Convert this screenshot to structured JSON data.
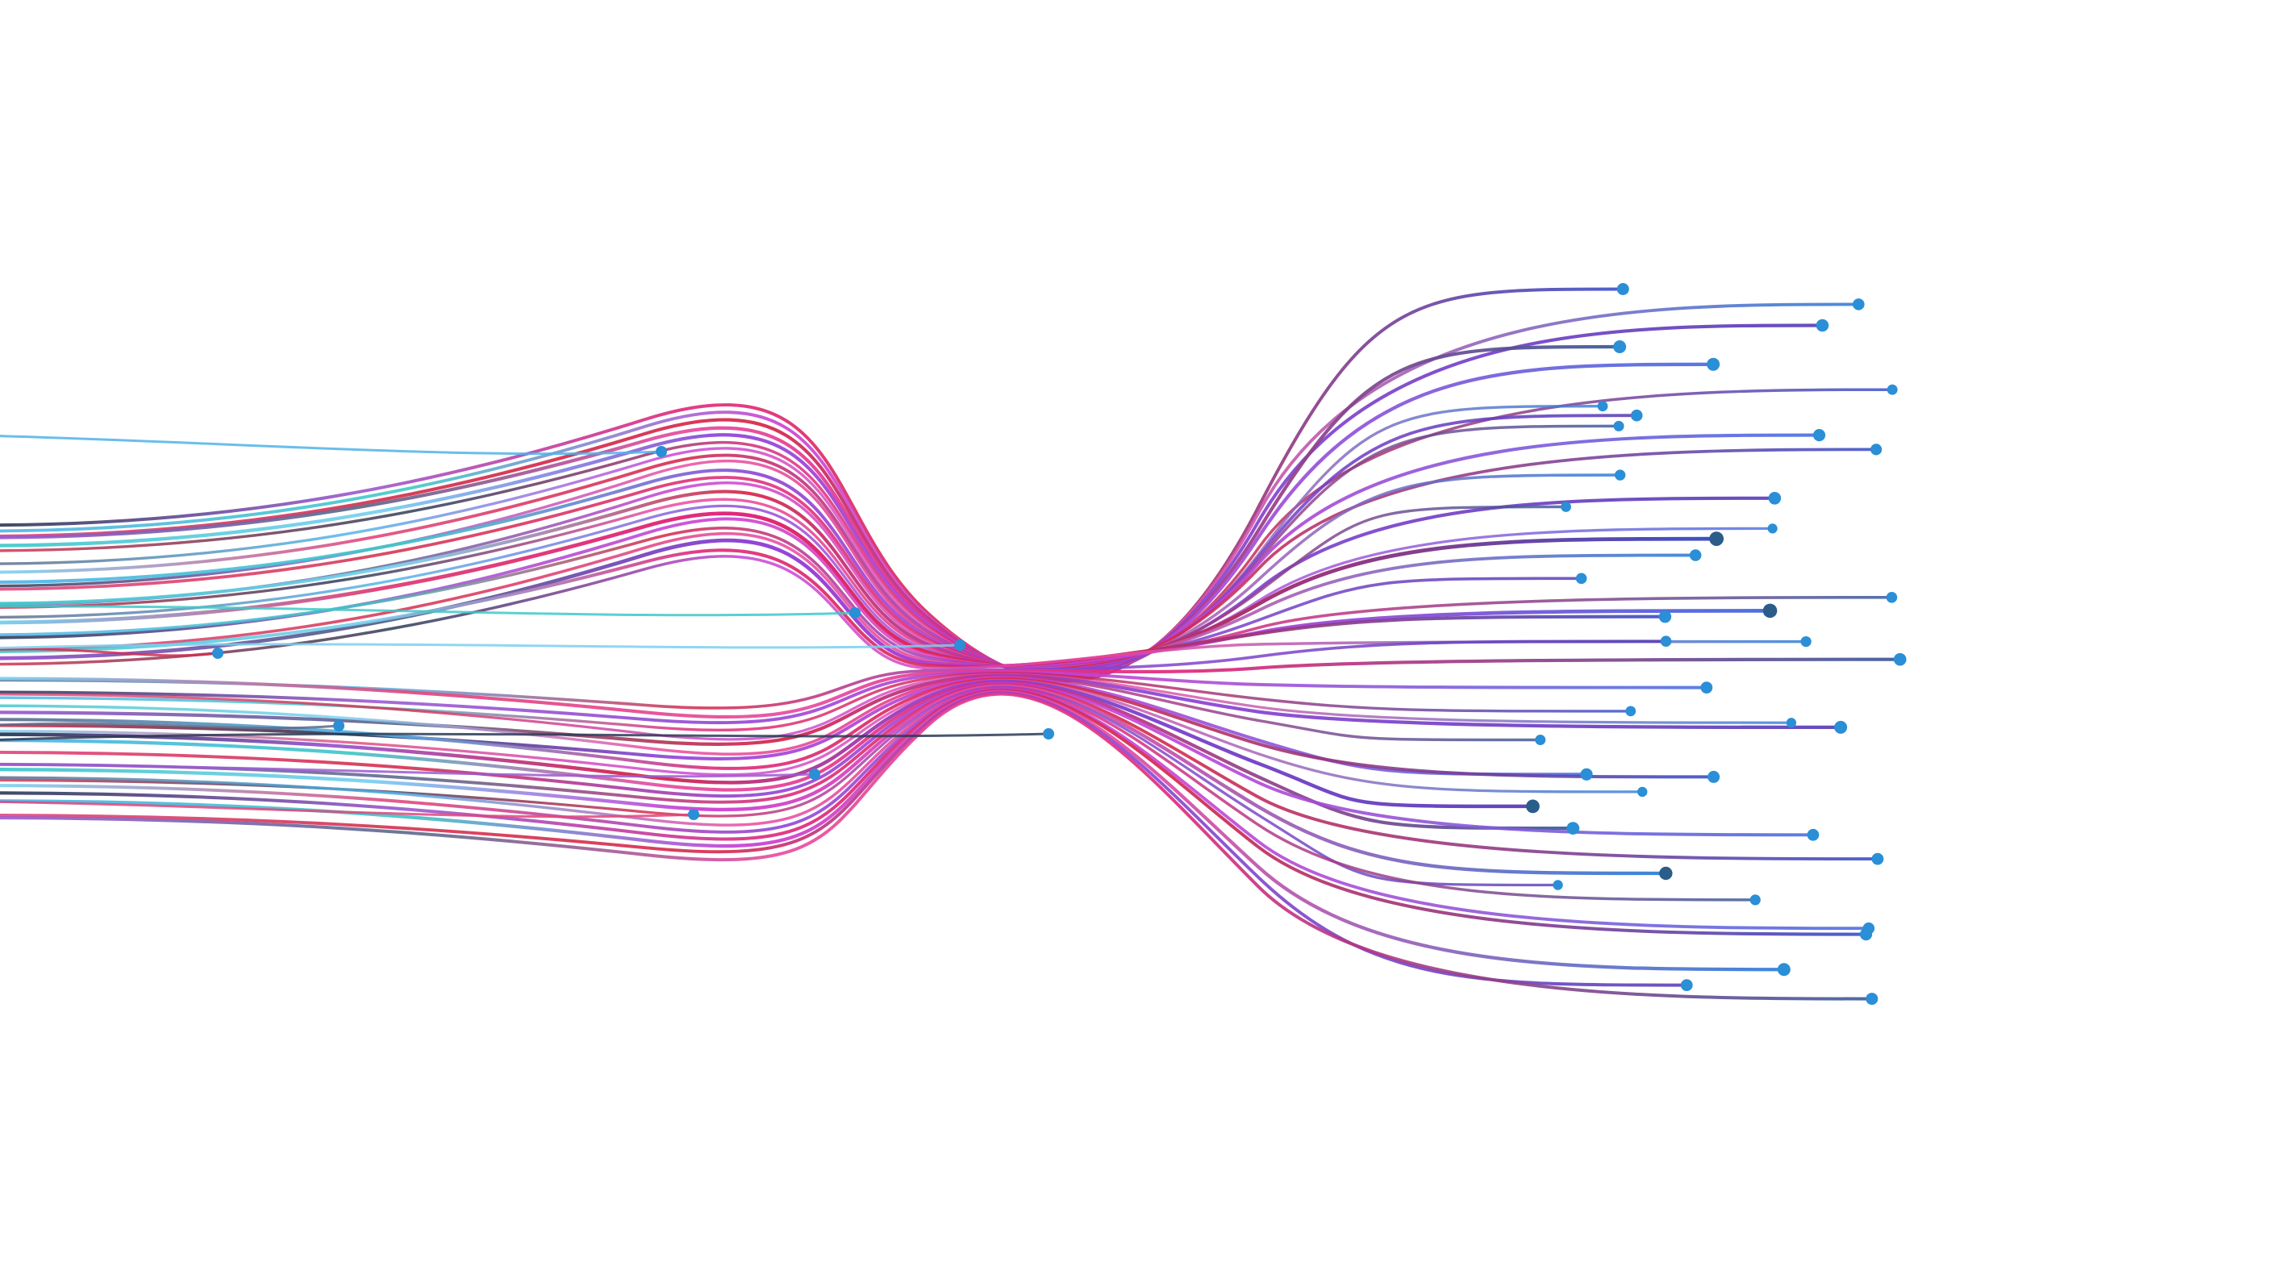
{
  "scene": {
    "subject": "fiber-optic-strands",
    "background_color": "#ffffff",
    "colors": {
      "tip": "#2a8fd6",
      "tip_dark": "#2b5d8a",
      "start_palette": [
        "#2b3a55",
        "#4fb3e8",
        "#e0457b",
        "#9b59d0",
        "#3fc8c8",
        "#d42f4f",
        "#5a6a8a",
        "#7ad0f0"
      ],
      "mid_palette": [
        "#e0287a",
        "#c93fd4",
        "#d6264a",
        "#e84aa0",
        "#8e44d6"
      ],
      "end_palette": [
        "#3a4fc8",
        "#2f7fd8",
        "#5a3fb8",
        "#3b5a9a",
        "#4a6fe0"
      ]
    },
    "fiber_count": 44
  }
}
